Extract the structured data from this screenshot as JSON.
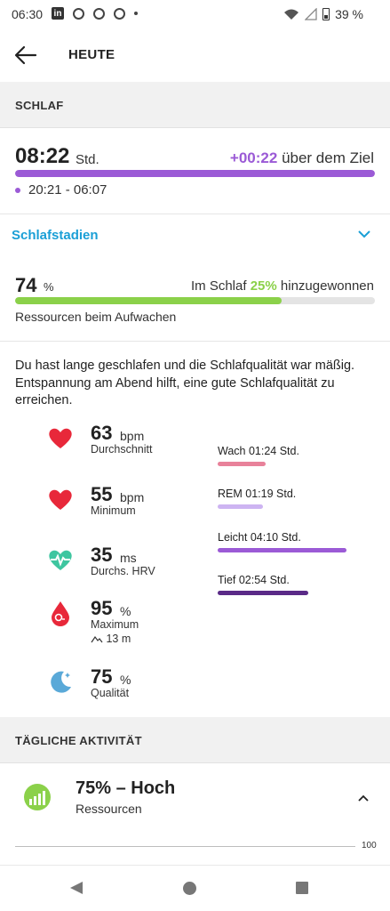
{
  "status_bar": {
    "time": "06:30",
    "linkedin_glyph": "in",
    "battery": "39 %",
    "icons": [
      "linkedin-icon",
      "circle-icon",
      "circle-icon",
      "circle-icon",
      "dot-icon",
      "wifi-icon",
      "signal-icon",
      "battery-icon"
    ]
  },
  "app_bar": {
    "title": "HEUTE"
  },
  "sleep": {
    "section": "SCHLAF",
    "duration": "08:22",
    "duration_unit": "Std.",
    "over_value": "+00:22",
    "over_text": "über dem Ziel",
    "time_range": "20:21 - 06:07",
    "bar_fill": 1.0,
    "bar_color": "#9b5ad6"
  },
  "stages_link": {
    "label": "Schlafstadien"
  },
  "resources": {
    "value": "74",
    "unit": "%",
    "gained_prefix": "Im Schlaf",
    "gained_value": "25%",
    "gained_suffix": "hinzugewonnen",
    "label": "Ressourcen beim Aufwachen",
    "bar_fill": 0.74,
    "bar_color": "#8bd14a"
  },
  "description": "Du hast lange geschlafen und die Schlafqualität war mäßig. Entspannung am Abend hilft, eine gute Schlafqualität zu erreichen.",
  "metrics": [
    {
      "icon": "heart-icon",
      "value": "63",
      "unit": "bpm",
      "label": "Durchschnitt"
    },
    {
      "icon": "heart-icon",
      "value": "55",
      "unit": "bpm",
      "label": "Minimum"
    },
    {
      "icon": "hrv-heart-icon",
      "value": "35",
      "unit": "ms",
      "label": "Durchs. HRV"
    },
    {
      "icon": "oxygen-drop-icon",
      "value": "95",
      "unit": "%",
      "label": "Maximum",
      "extra": "13 m"
    },
    {
      "icon": "moon-icon",
      "value": "75",
      "unit": "%",
      "label": "Qualität"
    }
  ],
  "stages": [
    {
      "label": "Wach 01:24 Std.",
      "fraction": 0.37,
      "color": "#e8819a"
    },
    {
      "label": "REM 01:19 Std.",
      "fraction": 0.35,
      "color": "#cdb4f2"
    },
    {
      "label": "Leicht 04:10 Std.",
      "fraction": 1.0,
      "color": "#9b5ad6"
    },
    {
      "label": "Tief 02:54 Std.",
      "fraction": 0.7,
      "color": "#5a2a87"
    }
  ],
  "activity": {
    "section": "TÄGLICHE AKTIVITÄT",
    "title": "75% – Hoch",
    "subtitle": "Ressourcen",
    "axis_max": "100"
  },
  "nav": {
    "icons": [
      "back-triangle-icon",
      "home-circle-icon",
      "recents-square-icon"
    ]
  }
}
